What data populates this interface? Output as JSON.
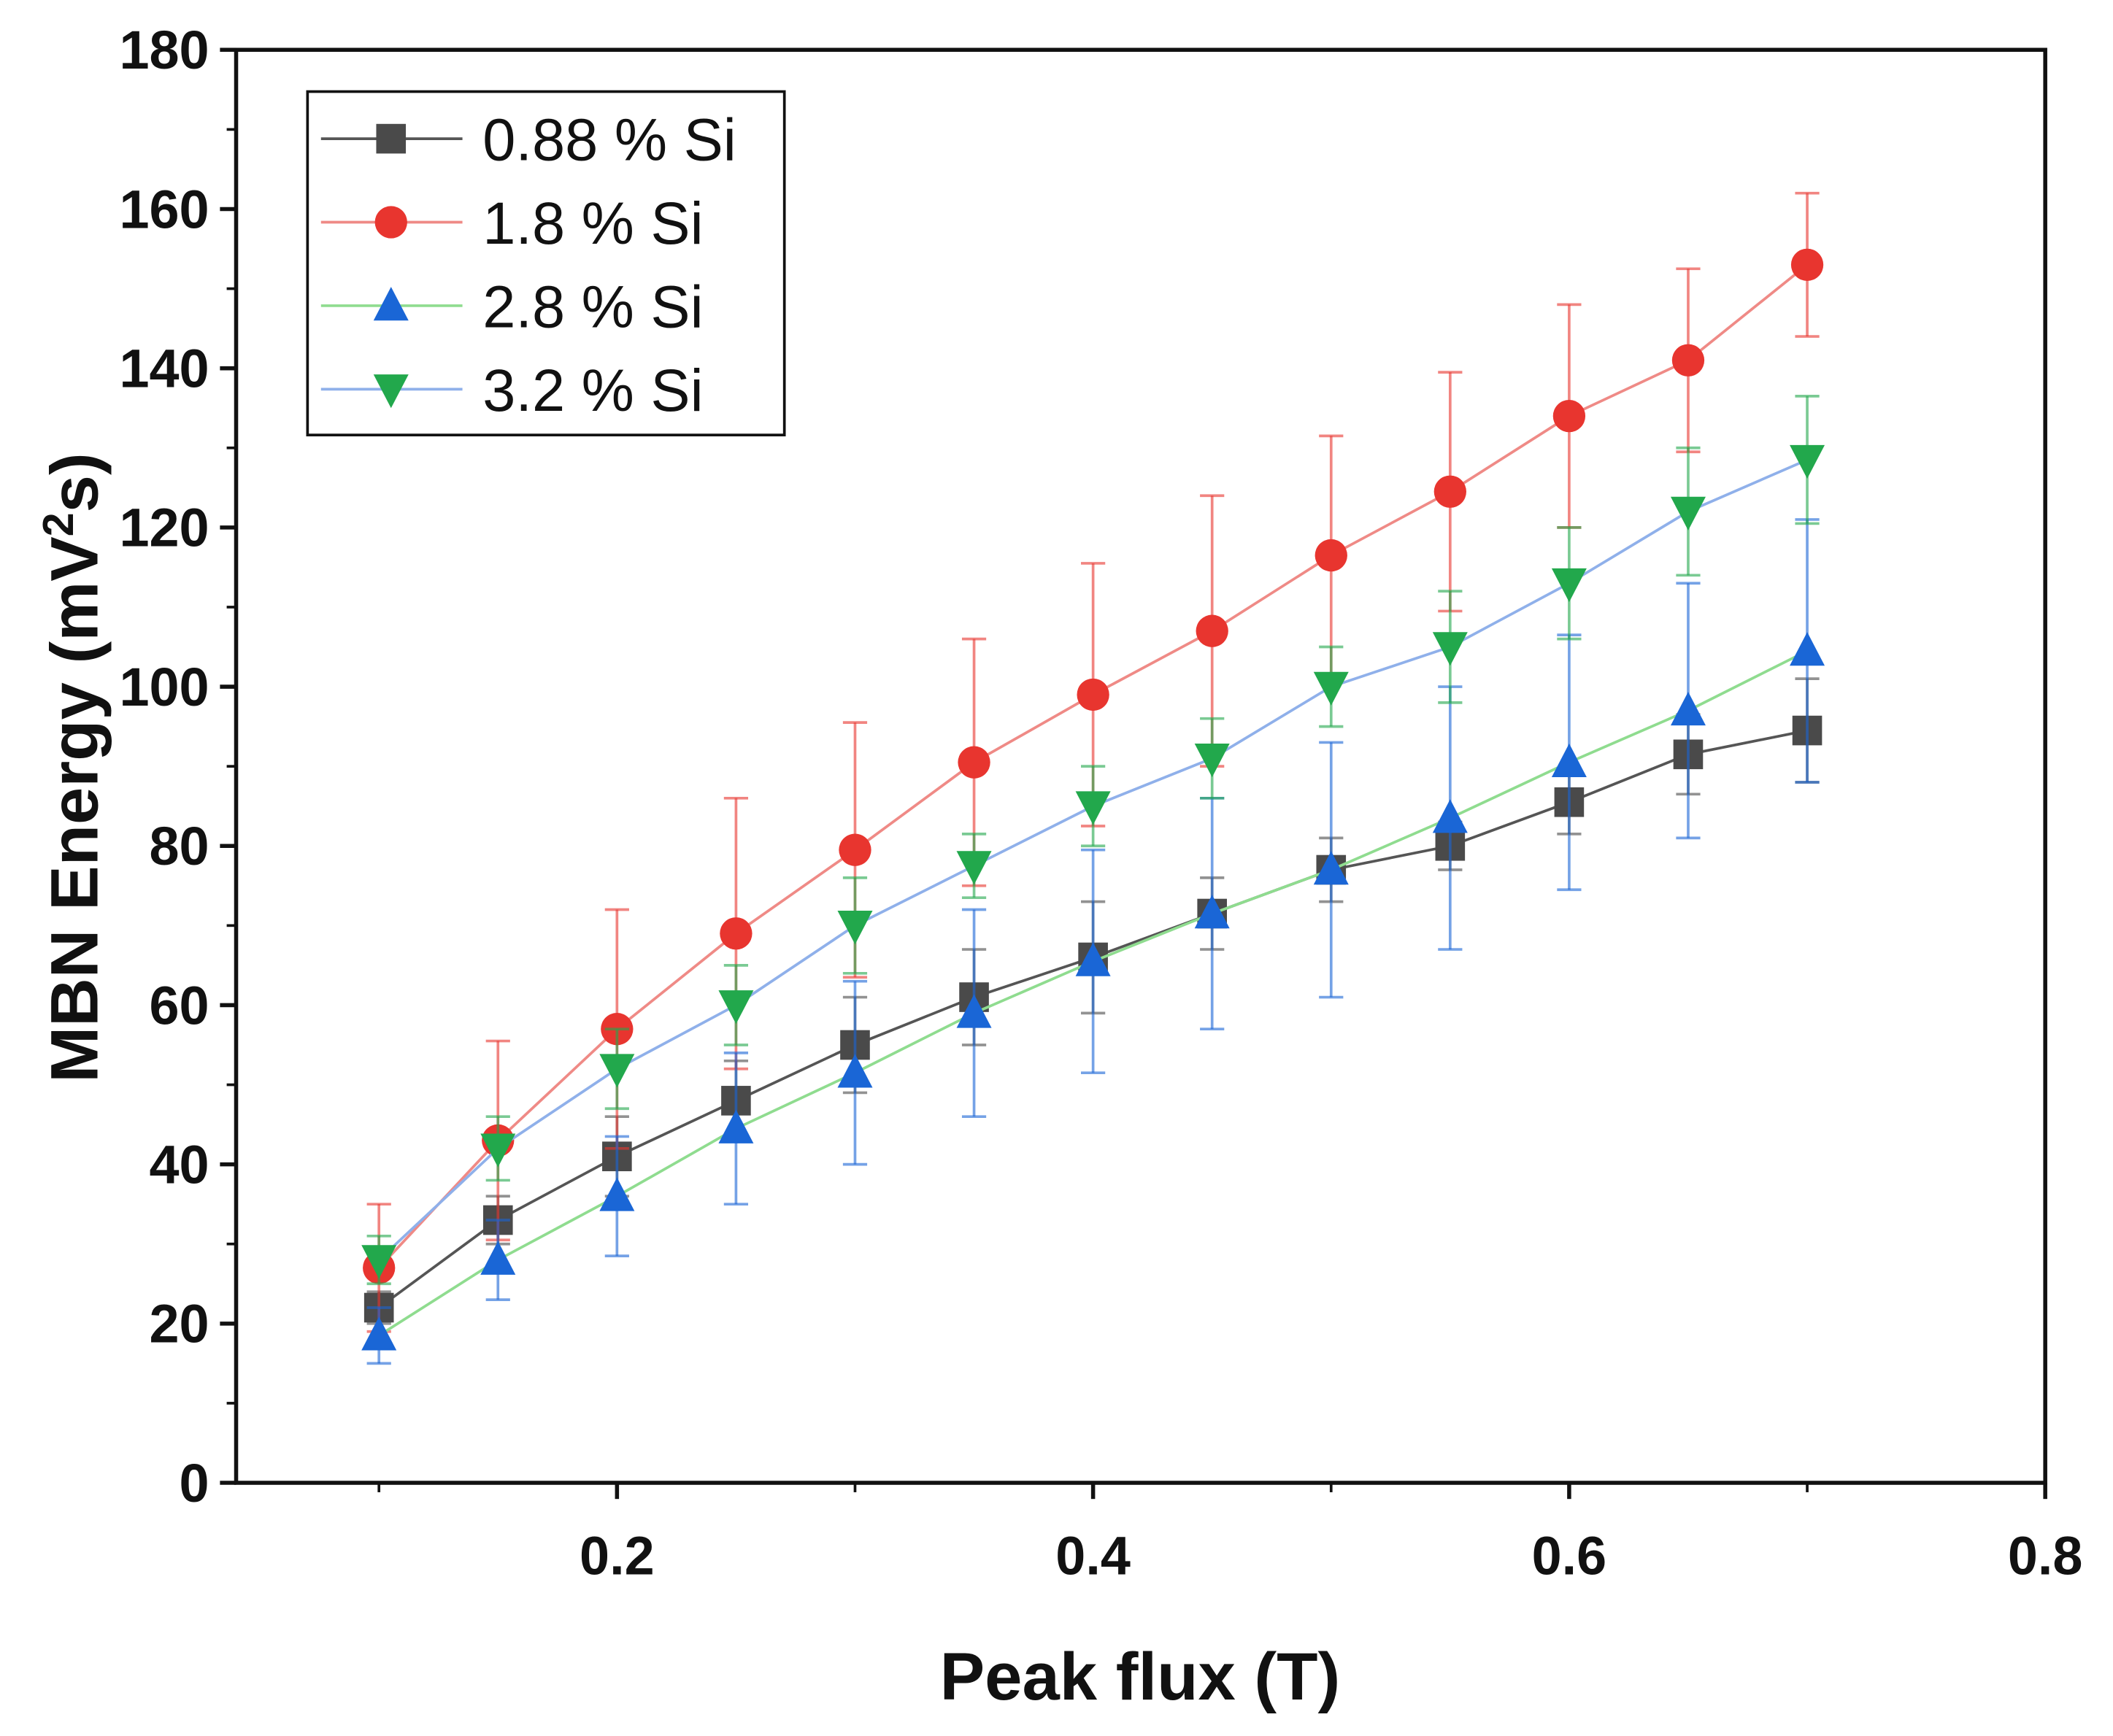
{
  "chart_data": {
    "type": "line",
    "title": "",
    "xlabel": "Peak flux (T)",
    "ylabel": "MBN Energy (mV",
    "ylabel_sup": "2",
    "ylabel_end": "s)",
    "xlim": [
      0.04,
      0.8
    ],
    "ylim": [
      0,
      180
    ],
    "xticks": [
      0.2,
      0.4,
      0.6,
      0.8
    ],
    "xtick_labels": [
      "0.2",
      "0.4",
      "0.6",
      "0.8"
    ],
    "yticks": [
      0,
      20,
      40,
      60,
      80,
      100,
      120,
      140,
      160,
      180
    ],
    "ytick_labels": [
      "0",
      "20",
      "40",
      "60",
      "80",
      "100",
      "120",
      "140",
      "160",
      "180"
    ],
    "grid": false,
    "legend_position": "top-left",
    "x": [
      0.1,
      0.15,
      0.2,
      0.25,
      0.3,
      0.35,
      0.4,
      0.45,
      0.5,
      0.55,
      0.6,
      0.65,
      0.7
    ],
    "series": [
      {
        "name": "0.88 % Si",
        "marker": "square",
        "marker_color": "#4a4a4a",
        "line_color": "#555555",
        "values": [
          22,
          33,
          41,
          48,
          55,
          61,
          66,
          71.5,
          77,
          80,
          85.5,
          91.5,
          94.5
        ],
        "errors": [
          2,
          3,
          5,
          5,
          6,
          6,
          7,
          4.5,
          4,
          3,
          4,
          5,
          6.5
        ]
      },
      {
        "name": "1.8 % Si",
        "marker": "circle",
        "marker_color": "#e8352f",
        "line_color": "#ef8a86",
        "values": [
          27,
          43,
          57,
          69,
          79.5,
          90.5,
          99,
          107,
          116.5,
          124.5,
          134,
          141,
          153
        ],
        "errors": [
          8,
          12.5,
          15,
          17,
          16,
          15.5,
          16.5,
          17,
          15,
          15,
          14,
          11.5,
          9
        ]
      },
      {
        "name": "2.8 % Si",
        "marker": "triangle-up",
        "marker_color": "#1a66d6",
        "line_color": "#8fdc8f",
        "values": [
          18.5,
          28,
          36,
          44.5,
          51.5,
          59,
          65.5,
          71.5,
          77,
          83.5,
          90.5,
          97,
          104.5
        ],
        "errors": [
          3.5,
          5,
          7.5,
          9.5,
          11.5,
          13,
          14,
          14.5,
          16,
          16.5,
          16,
          16,
          16.5
        ]
      },
      {
        "name": "3.2 % Si",
        "marker": "triangle-down",
        "marker_color": "#22a84c",
        "line_color": "#8fb0ea",
        "values": [
          28,
          42,
          52,
          60,
          70,
          77.5,
          85,
          91,
          100,
          105,
          113,
          122,
          128.5
        ],
        "errors": [
          3,
          4,
          5,
          5,
          6,
          4,
          5,
          5,
          5,
          7,
          7,
          8,
          8
        ]
      }
    ]
  }
}
